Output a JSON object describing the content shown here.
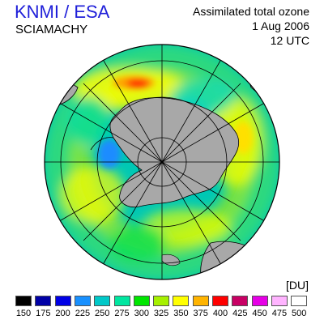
{
  "header": {
    "organization": "KNMI / ESA",
    "instrument": "SCIAMACHY",
    "product": "Assimilated total ozone",
    "date": "1 Aug 2006",
    "time": "12 UTC"
  },
  "map": {
    "projection": "polar-stereographic-south",
    "land_color": "#a8a8a8",
    "coastline_color": "#000000",
    "graticule_color": "#000000",
    "center_region": "Antarctica"
  },
  "legend": {
    "unit": "[DU]",
    "levels": [
      {
        "value": "150",
        "color": "#000000"
      },
      {
        "value": "175",
        "color": "#0000a6"
      },
      {
        "value": "200",
        "color": "#0000e6"
      },
      {
        "value": "225",
        "color": "#1890ff"
      },
      {
        "value": "250",
        "color": "#00c8c8"
      },
      {
        "value": "275",
        "color": "#00e6a0"
      },
      {
        "value": "300",
        "color": "#00e600"
      },
      {
        "value": "325",
        "color": "#a6f000"
      },
      {
        "value": "350",
        "color": "#ffff00"
      },
      {
        "value": "375",
        "color": "#ffb400"
      },
      {
        "value": "400",
        "color": "#ff0000"
      },
      {
        "value": "425",
        "color": "#c80064"
      },
      {
        "value": "450",
        "color": "#e600e6"
      },
      {
        "value": "475",
        "color": "#ffb4ff"
      },
      {
        "value": "500",
        "color": "#ffffff"
      }
    ]
  }
}
